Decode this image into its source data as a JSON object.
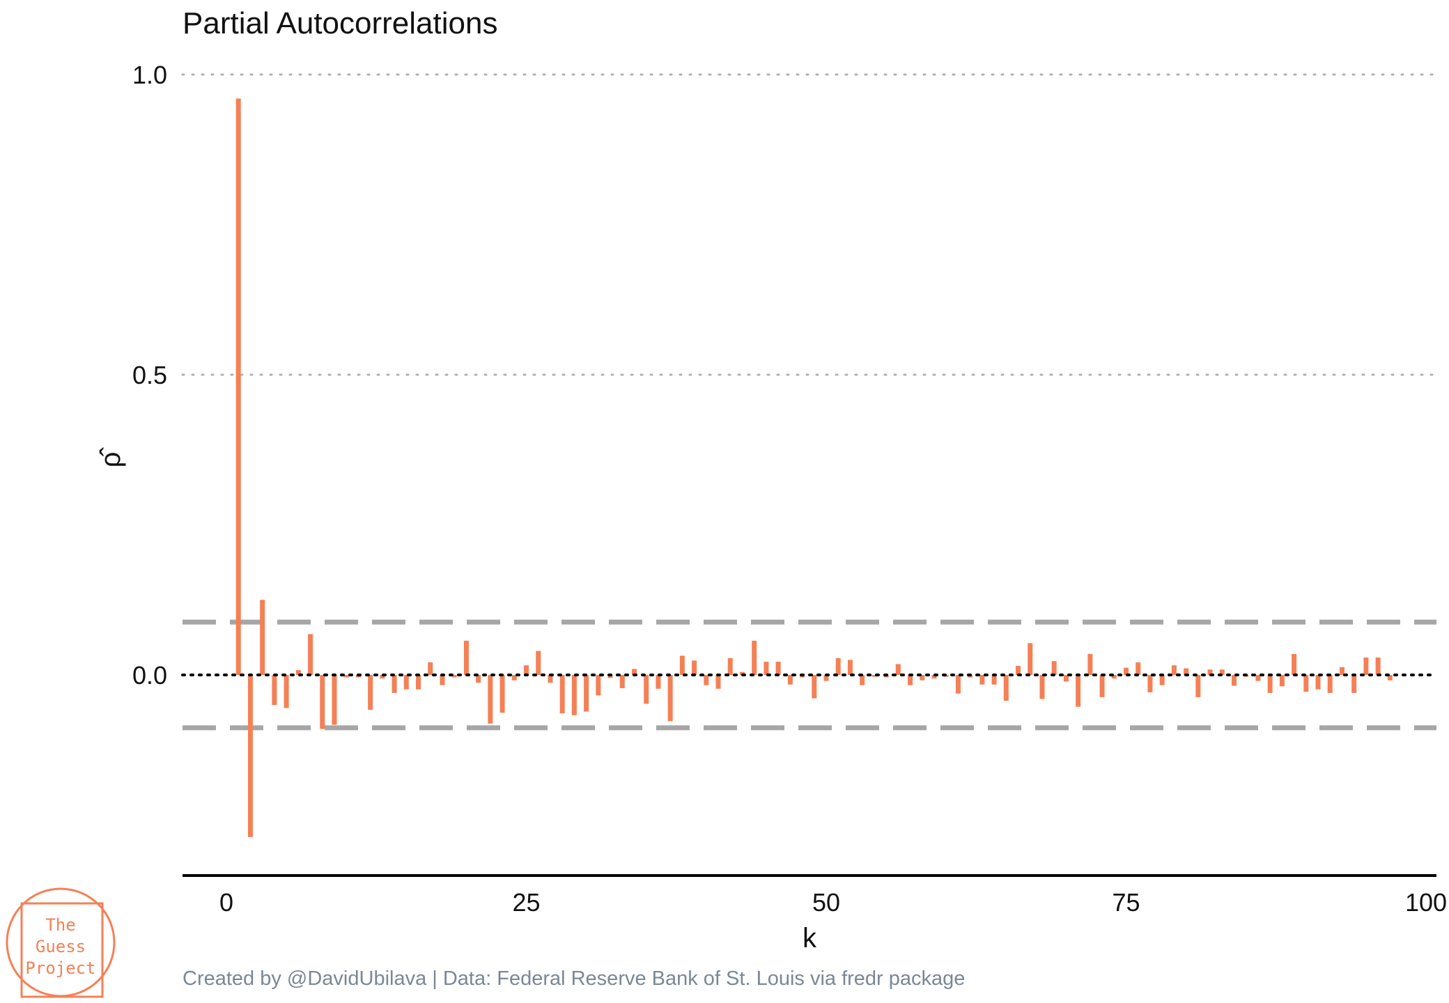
{
  "chart_data": {
    "type": "bar",
    "title": "Partial Autocorrelations",
    "xlabel": "k",
    "ylabel": "ρ̂",
    "xlim": [
      0,
      100
    ],
    "ylim": [
      -0.33,
      1.0
    ],
    "x_ticks": [
      0,
      25,
      50,
      75,
      100
    ],
    "y_ticks": [
      0.0,
      0.5,
      1.0
    ],
    "y_tick_labels": [
      "0.0",
      "0.5",
      "1.0"
    ],
    "grid": "horizontal dotted at 0.5 and 1.0",
    "reference_lines": {
      "zero": 0.0,
      "confidence_upper": 0.088,
      "confidence_lower": -0.088
    },
    "bar_color": "#f58055",
    "reference_color": "#a6a6a6",
    "lags": [
      1,
      2,
      3,
      4,
      5,
      6,
      7,
      8,
      9,
      10,
      11,
      12,
      13,
      14,
      15,
      16,
      17,
      18,
      19,
      20,
      21,
      22,
      23,
      24,
      25,
      26,
      27,
      28,
      29,
      30,
      31,
      32,
      33,
      34,
      35,
      36,
      37,
      38,
      39,
      40,
      41,
      42,
      43,
      44,
      45,
      46,
      47,
      48,
      49,
      50,
      51,
      52,
      53,
      54,
      55,
      56,
      57,
      58,
      59,
      60,
      61,
      62,
      63,
      64,
      65,
      66,
      67,
      68,
      69,
      70,
      71,
      72,
      73,
      74,
      75,
      76,
      77,
      78,
      79,
      80,
      81,
      82,
      83,
      84,
      85,
      86,
      87,
      88,
      89,
      90,
      91,
      92,
      93,
      94,
      95,
      96,
      97
    ],
    "values": [
      0.96,
      -0.27,
      0.125,
      -0.05,
      -0.055,
      0.008,
      0.068,
      -0.09,
      -0.083,
      -0.004,
      -0.004,
      -0.058,
      -0.006,
      -0.03,
      -0.024,
      -0.024,
      0.021,
      -0.017,
      -0.004,
      0.057,
      -0.013,
      -0.081,
      -0.063,
      -0.009,
      0.016,
      0.04,
      -0.013,
      -0.064,
      -0.067,
      -0.061,
      -0.034,
      -0.005,
      -0.022,
      0.01,
      -0.048,
      -0.023,
      -0.077,
      0.032,
      0.024,
      -0.017,
      -0.023,
      0.028,
      0.005,
      0.057,
      0.022,
      0.022,
      -0.016,
      -0.004,
      -0.039,
      -0.01,
      0.028,
      0.025,
      -0.017,
      -0.003,
      -0.004,
      0.018,
      -0.017,
      -0.009,
      -0.006,
      -0.003,
      -0.031,
      -0.004,
      -0.016,
      -0.016,
      -0.043,
      0.015,
      0.053,
      -0.04,
      0.023,
      -0.011,
      -0.053,
      0.035,
      -0.037,
      -0.006,
      0.012,
      0.021,
      -0.029,
      -0.017,
      0.016,
      0.011,
      -0.037,
      0.009,
      0.009,
      -0.018,
      -0.003,
      -0.01,
      -0.03,
      -0.019,
      0.035,
      -0.028,
      -0.024,
      -0.03,
      0.013,
      -0.03,
      0.029,
      0.029,
      -0.009
    ]
  },
  "caption": "Created by @DavidUbilava | Data: Federal Reserve Bank of St. Louis via fredr package",
  "logo": {
    "line1": "The",
    "line2": "Guess",
    "line3": "Project",
    "color": "#f58055"
  }
}
